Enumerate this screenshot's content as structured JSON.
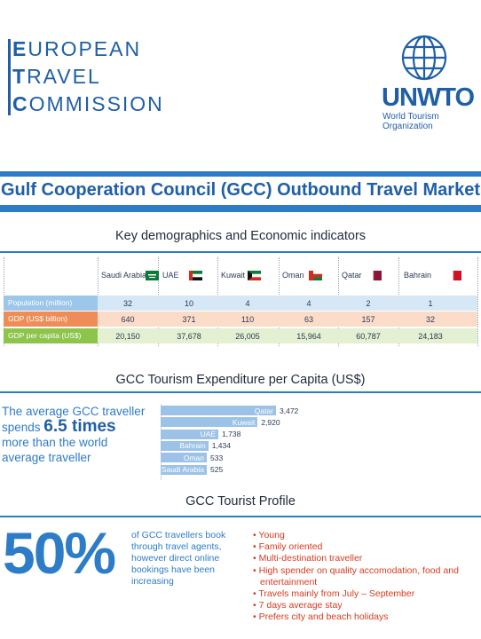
{
  "header": {
    "etc_lines": [
      {
        "initial": "E",
        "rest": "UROPEAN"
      },
      {
        "initial": "T",
        "rest": "RAVEL"
      },
      {
        "initial": "C",
        "rest": "OMMISSION"
      }
    ],
    "unwto_name": "UNWTO",
    "unwto_sub": "World Tourism Organization"
  },
  "title": "Gulf Cooperation Council (GCC) Outbound Travel Market",
  "demographics": {
    "heading": "Key demographics and Economic indicators",
    "countries": [
      "Saudi Arabia",
      "UAE",
      "Kuwait",
      "Oman",
      "Qatar",
      "Bahrain"
    ],
    "rows": [
      {
        "label": "Population (million)",
        "values": [
          "32",
          "10",
          "4",
          "4",
          "2",
          "1"
        ],
        "color": "#9cc6ea",
        "tint": "#d6e7f6"
      },
      {
        "label": "GDP (US$ billion)",
        "values": [
          "640",
          "371",
          "110",
          "63",
          "157",
          "32"
        ],
        "color": "#ef8d58",
        "tint": "#fbdcc9"
      },
      {
        "label": "GDP per capita (US$)",
        "values": [
          "20,150",
          "37,678",
          "26,005",
          "15,964",
          "60,787",
          "24,183"
        ],
        "color": "#8dc44a",
        "tint": "#e3f0d2"
      }
    ]
  },
  "expenditure": {
    "heading": "GCC Tourism Expenditure per Capita (US$)",
    "avg_line1": "The average GCC traveller",
    "avg_line2_pre": "spends ",
    "avg_highlight": "6.5 times",
    "avg_line3": " more than the world",
    "avg_line4": "average traveller",
    "bars": [
      {
        "country": "Qatar",
        "label": "3,472",
        "value": 3472
      },
      {
        "country": "Kuwait",
        "label": "2,920",
        "value": 2920
      },
      {
        "country": "UAE",
        "label": "1,738",
        "value": 1738
      },
      {
        "country": "Bahrain",
        "label": "1,434",
        "value": 1434
      },
      {
        "country": "Oman",
        "label": "533",
        "value": 533
      },
      {
        "country": "Saudi Arabia",
        "label": "525",
        "value": 525
      }
    ]
  },
  "profile": {
    "heading": "GCC Tourist Profile",
    "big_stat": "50%",
    "stat_text": "of GCC travellers book through travel agents, however direct online bookings have been increasing",
    "items": [
      "Young",
      "Family oriented",
      "Multi-destination traveller",
      "High spender on quality accomodation, food and entertainment",
      "Travels mainly from July – September",
      "7 days average stay",
      "Prefers city and beach holidays"
    ]
  }
}
